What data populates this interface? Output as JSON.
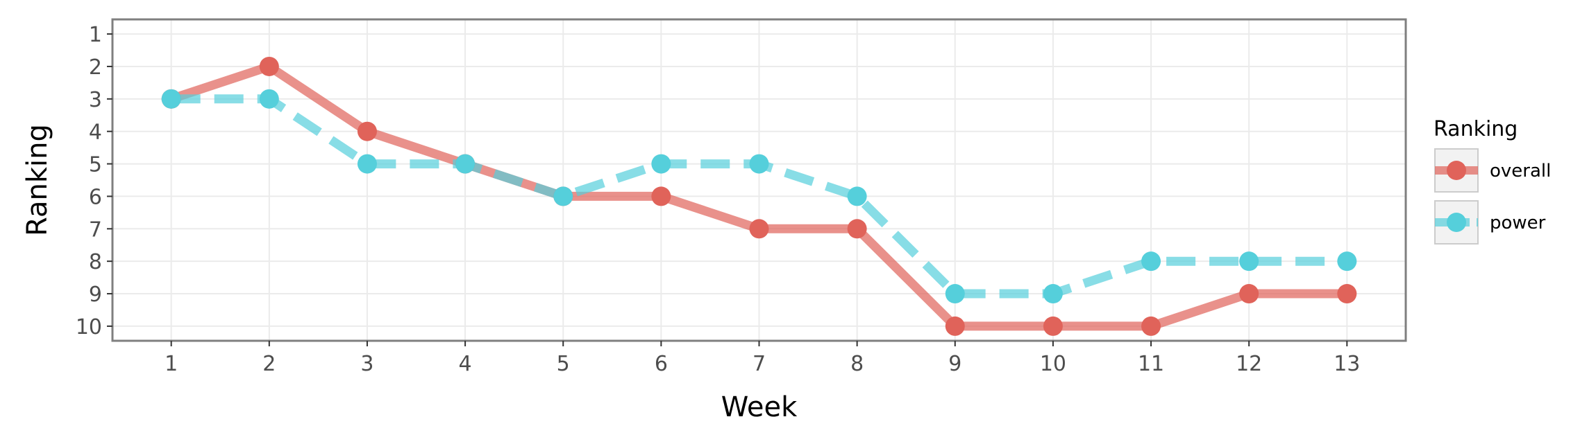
{
  "chart_data": {
    "type": "line",
    "xlabel": "Week",
    "ylabel": "Ranking",
    "x": [
      1,
      2,
      3,
      4,
      5,
      6,
      7,
      8,
      9,
      10,
      11,
      12,
      13
    ],
    "xticks": [
      "1",
      "2",
      "3",
      "4",
      "5",
      "6",
      "7",
      "8",
      "9",
      "10",
      "11",
      "12",
      "13"
    ],
    "yticks": [
      "1",
      "2",
      "3",
      "4",
      "5",
      "6",
      "7",
      "8",
      "9",
      "10"
    ],
    "yticks_values": [
      1,
      2,
      3,
      4,
      5,
      6,
      7,
      8,
      9,
      10
    ],
    "xlim": [
      0.4,
      13.6
    ],
    "ylim": [
      10.45,
      0.55
    ],
    "y_reversed": true,
    "grid": true,
    "legend": {
      "title": "Ranking",
      "position": "right"
    },
    "series": [
      {
        "name": "overall",
        "values": [
          3,
          2,
          4,
          5,
          6,
          6,
          7,
          7,
          10,
          10,
          10,
          9,
          9
        ],
        "color": "#e0635a",
        "line_style": "solid"
      },
      {
        "name": "power",
        "values": [
          3,
          3,
          5,
          5,
          6,
          5,
          5,
          6,
          9,
          9,
          8,
          8,
          8
        ],
        "color": "#55cfdb",
        "line_style": "dashed"
      }
    ]
  }
}
